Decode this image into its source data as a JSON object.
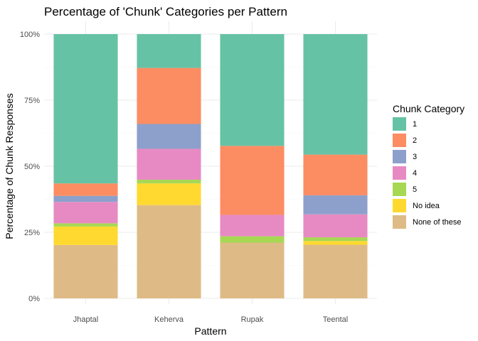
{
  "chart_data": {
    "type": "bar",
    "stacked": true,
    "title": "Percentage of 'Chunk' Categories per Pattern",
    "xlabel": "Pattern",
    "ylabel": "Percentage of Chunk Responses",
    "categories": [
      "Jhaptal",
      "Keherva",
      "Rupak",
      "Teental"
    ],
    "ylim": [
      0,
      100
    ],
    "yticks": [
      0,
      25,
      50,
      75,
      100
    ],
    "ytick_labels": [
      "0%",
      "25%",
      "50%",
      "75%",
      "100%"
    ],
    "grid": true,
    "legend": {
      "title": "Chunk Category",
      "position": "right"
    },
    "series": [
      {
        "name": "None of these",
        "color": "#DEBB86",
        "values": [
          20.2,
          35.3,
          21.1,
          20.3
        ]
      },
      {
        "name": "No idea",
        "color": "#FFD92F",
        "values": [
          7.0,
          8.2,
          0.0,
          1.4
        ]
      },
      {
        "name": "5",
        "color": "#A6D854",
        "values": [
          1.2,
          1.4,
          2.4,
          1.4
        ]
      },
      {
        "name": "4",
        "color": "#E78AC3",
        "values": [
          8.1,
          11.7,
          8.1,
          8.7
        ]
      },
      {
        "name": "3",
        "color": "#8DA0CB",
        "values": [
          2.3,
          9.4,
          0.0,
          7.2
        ]
      },
      {
        "name": "2",
        "color": "#FC8D62",
        "values": [
          4.7,
          21.2,
          26.1,
          15.4
        ]
      },
      {
        "name": "1",
        "color": "#66C2A5",
        "values": [
          56.5,
          12.8,
          42.3,
          45.6
        ]
      }
    ],
    "legend_order": [
      "1",
      "2",
      "3",
      "4",
      "5",
      "No idea",
      "None of these"
    ]
  }
}
